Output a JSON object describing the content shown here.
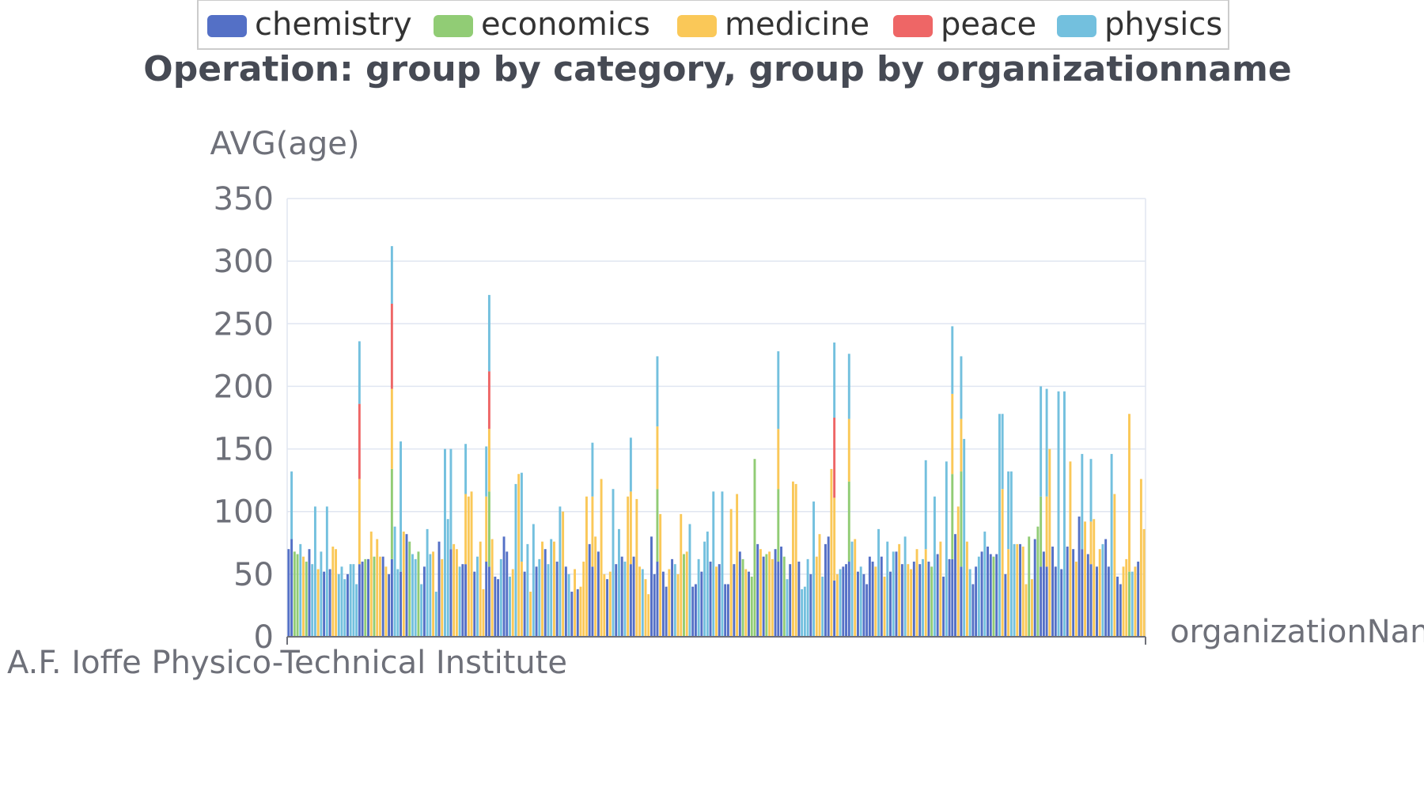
{
  "chart_data": {
    "type": "bar",
    "stacked": true,
    "title": "Operation: group by category, group by organizationname",
    "xlabel": "organizationName",
    "ylabel": "AVG(age)",
    "ylim": [
      0,
      350
    ],
    "yticks": [
      0,
      50,
      100,
      150,
      200,
      250,
      300,
      350
    ],
    "grid": true,
    "legend_position": "top",
    "first_category_label": "A.F. Ioffe Physico-Technical Institute",
    "category_count": 291,
    "series": [
      {
        "name": "chemistry",
        "color": "#5470c6"
      },
      {
        "name": "economics",
        "color": "#91cc75"
      },
      {
        "name": "medicine",
        "color": "#fac858"
      },
      {
        "name": "peace",
        "color": "#ee6666"
      },
      {
        "name": "physics",
        "color": "#73c0de"
      }
    ],
    "stacks": [
      {
        "i": 0,
        "segs": [
          [
            "chemistry",
            70
          ]
        ]
      },
      {
        "i": 1,
        "segs": [
          [
            "chemistry",
            78
          ],
          [
            "physics",
            54
          ]
        ]
      },
      {
        "i": 2,
        "segs": [
          [
            "economics",
            68
          ]
        ]
      },
      {
        "i": 6,
        "segs": [
          [
            "economics",
            60
          ]
        ]
      },
      {
        "i": 21,
        "segs": [
          [
            "physics",
            58
          ]
        ]
      },
      {
        "i": 24,
        "segs": [
          [
            "chemistry",
            58
          ],
          [
            "medicine",
            68
          ],
          [
            "peace",
            60
          ],
          [
            "physics",
            50
          ]
        ]
      },
      {
        "i": 35,
        "segs": [
          [
            "chemistry",
            62
          ],
          [
            "economics",
            72
          ],
          [
            "medicine",
            64
          ],
          [
            "peace",
            68
          ],
          [
            "physics",
            46
          ]
        ]
      },
      {
        "i": 38,
        "segs": [
          [
            "chemistry",
            52
          ],
          [
            "physics",
            104
          ]
        ]
      },
      {
        "i": 55,
        "segs": [
          [
            "chemistry",
            70
          ],
          [
            "physics",
            80
          ]
        ]
      },
      {
        "i": 60,
        "segs": [
          [
            "chemistry",
            58
          ],
          [
            "medicine",
            56
          ],
          [
            "physics",
            40
          ]
        ]
      },
      {
        "i": 67,
        "segs": [
          [
            "chemistry",
            60
          ],
          [
            "medicine",
            52
          ],
          [
            "physics",
            40
          ]
        ]
      },
      {
        "i": 68,
        "segs": [
          [
            "chemistry",
            56
          ],
          [
            "economics",
            60
          ],
          [
            "medicine",
            50
          ],
          [
            "peace",
            46
          ],
          [
            "physics",
            61
          ]
        ]
      },
      {
        "i": 79,
        "segs": [
          [
            "medicine",
            60
          ],
          [
            "physics",
            71
          ]
        ]
      },
      {
        "i": 103,
        "segs": [
          [
            "chemistry",
            56
          ],
          [
            "medicine",
            56
          ],
          [
            "physics",
            43
          ]
        ]
      },
      {
        "i": 116,
        "segs": [
          [
            "chemistry",
            58
          ],
          [
            "medicine",
            58
          ],
          [
            "physics",
            43
          ]
        ]
      },
      {
        "i": 125,
        "segs": [
          [
            "chemistry",
            60
          ],
          [
            "economics",
            58
          ],
          [
            "medicine",
            50
          ],
          [
            "physics",
            56
          ]
        ]
      },
      {
        "i": 133,
        "segs": [
          [
            "medicine",
            98
          ]
        ]
      },
      {
        "i": 158,
        "segs": [
          [
            "economics",
            142
          ]
        ]
      },
      {
        "i": 166,
        "segs": [
          [
            "chemistry",
            60
          ],
          [
            "economics",
            58
          ],
          [
            "medicine",
            48
          ],
          [
            "physics",
            62
          ]
        ]
      },
      {
        "i": 172,
        "segs": [
          [
            "medicine",
            122
          ]
        ]
      },
      {
        "i": 185,
        "segs": [
          [
            "chemistry",
            45
          ],
          [
            "medicine",
            66
          ],
          [
            "peace",
            64
          ],
          [
            "physics",
            60
          ]
        ]
      },
      {
        "i": 190,
        "segs": [
          [
            "chemistry",
            60
          ],
          [
            "economics",
            64
          ],
          [
            "medicine",
            50
          ],
          [
            "physics",
            52
          ]
        ]
      },
      {
        "i": 216,
        "segs": [
          [
            "medicine",
            70
          ],
          [
            "physics",
            71
          ]
        ]
      },
      {
        "i": 225,
        "segs": [
          [
            "chemistry",
            62
          ],
          [
            "economics",
            68
          ],
          [
            "medicine",
            64
          ],
          [
            "physics",
            54
          ]
        ]
      },
      {
        "i": 228,
        "segs": [
          [
            "chemistry",
            56
          ],
          [
            "economics",
            76
          ],
          [
            "medicine",
            42
          ],
          [
            "physics",
            50
          ]
        ]
      },
      {
        "i": 242,
        "segs": [
          [
            "medicine",
            118
          ],
          [
            "physics",
            60
          ]
        ]
      },
      {
        "i": 244,
        "segs": [
          [
            "medicine",
            70
          ],
          [
            "physics",
            62
          ]
        ]
      },
      {
        "i": 255,
        "segs": [
          [
            "chemistry",
            56
          ],
          [
            "economics",
            56
          ],
          [
            "physics",
            88
          ]
        ]
      },
      {
        "i": 257,
        "segs": [
          [
            "chemistry",
            56
          ],
          [
            "medicine",
            56
          ],
          [
            "physics",
            86
          ]
        ]
      },
      {
        "i": 269,
        "segs": [
          [
            "chemistry",
            70
          ],
          [
            "physics",
            76
          ]
        ]
      },
      {
        "i": 272,
        "segs": [
          [
            "chemistry",
            58
          ],
          [
            "medicine",
            34
          ],
          [
            "physics",
            50
          ]
        ]
      },
      {
        "i": 285,
        "segs": [
          [
            "economics",
            52
          ],
          [
            "medicine",
            126
          ]
        ]
      },
      {
        "i": 290,
        "segs": [
          [
            "medicine",
            86
          ]
        ]
      }
    ],
    "other_values": [
      [
        1,
        66
      ],
      [
        4,
        74
      ],
      [
        2,
        64
      ],
      [
        0,
        70
      ],
      [
        4,
        58
      ],
      [
        4,
        104
      ],
      [
        2,
        54
      ],
      [
        4,
        68
      ],
      [
        0,
        52
      ],
      [
        4,
        104
      ],
      [
        0,
        54
      ],
      [
        2,
        72
      ],
      [
        2,
        70
      ],
      [
        4,
        50
      ],
      [
        4,
        56
      ],
      [
        4,
        46
      ],
      [
        0,
        50
      ],
      [
        4,
        58
      ],
      [
        4,
        42
      ],
      [
        0,
        60
      ],
      [
        1,
        62
      ],
      [
        0,
        62
      ],
      [
        2,
        84
      ],
      [
        1,
        64
      ],
      [
        2,
        78
      ],
      [
        2,
        64
      ],
      [
        0,
        64
      ],
      [
        2,
        56
      ],
      [
        0,
        50
      ],
      [
        4,
        88
      ],
      [
        4,
        54
      ],
      [
        2,
        84
      ],
      [
        0,
        82
      ],
      [
        1,
        76
      ],
      [
        4,
        66
      ],
      [
        4,
        62
      ],
      [
        1,
        68
      ],
      [
        4,
        42
      ],
      [
        0,
        56
      ],
      [
        4,
        86
      ],
      [
        4,
        66
      ],
      [
        2,
        68
      ],
      [
        4,
        36
      ],
      [
        0,
        76
      ],
      [
        2,
        62
      ],
      [
        4,
        150
      ],
      [
        4,
        94
      ],
      [
        2,
        74
      ],
      [
        2,
        70
      ],
      [
        4,
        56
      ],
      [
        0,
        58
      ],
      [
        2,
        112
      ],
      [
        2,
        116
      ],
      [
        0,
        52
      ],
      [
        4,
        64
      ],
      [
        2,
        76
      ],
      [
        2,
        38
      ],
      [
        2,
        78
      ],
      [
        0,
        48
      ],
      [
        0,
        46
      ],
      [
        4,
        62
      ],
      [
        0,
        80
      ],
      [
        0,
        68
      ],
      [
        4,
        48
      ],
      [
        2,
        54
      ],
      [
        4,
        122
      ],
      [
        2,
        130
      ],
      [
        0,
        52
      ],
      [
        4,
        74
      ],
      [
        2,
        36
      ],
      [
        4,
        90
      ],
      [
        0,
        56
      ],
      [
        4,
        62
      ],
      [
        2,
        76
      ],
      [
        0,
        70
      ],
      [
        4,
        58
      ],
      [
        4,
        78
      ],
      [
        2,
        76
      ],
      [
        0,
        60
      ],
      [
        4,
        104
      ],
      [
        2,
        100
      ],
      [
        0,
        56
      ],
      [
        4,
        50
      ],
      [
        0,
        36
      ],
      [
        2,
        54
      ],
      [
        0,
        38
      ],
      [
        2,
        40
      ],
      [
        2,
        60
      ],
      [
        2,
        112
      ],
      [
        0,
        74
      ],
      [
        2,
        80
      ],
      [
        0,
        68
      ],
      [
        2,
        126
      ],
      [
        2,
        50
      ],
      [
        0,
        46
      ],
      [
        2,
        52
      ],
      [
        4,
        118
      ],
      [
        0,
        58
      ],
      [
        4,
        86
      ],
      [
        0,
        64
      ],
      [
        4,
        60
      ],
      [
        2,
        112
      ],
      [
        0,
        64
      ],
      [
        2,
        110
      ],
      [
        2,
        56
      ],
      [
        4,
        54
      ],
      [
        2,
        46
      ],
      [
        2,
        34
      ],
      [
        0,
        80
      ],
      [
        0,
        50
      ],
      [
        2,
        98
      ],
      [
        0,
        52
      ],
      [
        0,
        40
      ],
      [
        2,
        54
      ],
      [
        0,
        62
      ],
      [
        4,
        58
      ],
      [
        2,
        50
      ],
      [
        1,
        66
      ],
      [
        2,
        68
      ],
      [
        4,
        90
      ],
      [
        0,
        40
      ],
      [
        0,
        42
      ],
      [
        4,
        62
      ],
      [
        0,
        52
      ],
      [
        4,
        76
      ],
      [
        4,
        84
      ],
      [
        0,
        60
      ],
      [
        4,
        116
      ],
      [
        2,
        56
      ],
      [
        0,
        58
      ],
      [
        4,
        116
      ],
      [
        0,
        42
      ],
      [
        0,
        42
      ],
      [
        2,
        102
      ],
      [
        0,
        58
      ],
      [
        2,
        114
      ],
      [
        0,
        68
      ],
      [
        1,
        62
      ],
      [
        2,
        54
      ],
      [
        0,
        52
      ],
      [
        1,
        48
      ],
      [
        0,
        74
      ],
      [
        2,
        70
      ],
      [
        0,
        64
      ],
      [
        1,
        66
      ],
      [
        2,
        68
      ],
      [
        2,
        62
      ],
      [
        0,
        70
      ],
      [
        0,
        72
      ],
      [
        1,
        64
      ],
      [
        4,
        46
      ],
      [
        0,
        58
      ],
      [
        2,
        124
      ],
      [
        0,
        60
      ],
      [
        4,
        38
      ],
      [
        4,
        40
      ],
      [
        4,
        62
      ],
      [
        0,
        50
      ],
      [
        4,
        108
      ],
      [
        2,
        64
      ],
      [
        2,
        82
      ],
      [
        4,
        48
      ],
      [
        0,
        74
      ],
      [
        0,
        80
      ],
      [
        2,
        134
      ],
      [
        2,
        50
      ],
      [
        4,
        54
      ],
      [
        0,
        56
      ],
      [
        0,
        58
      ],
      [
        4,
        76
      ],
      [
        2,
        78
      ],
      [
        0,
        52
      ],
      [
        4,
        56
      ],
      [
        0,
        50
      ],
      [
        0,
        42
      ],
      [
        0,
        64
      ],
      [
        0,
        60
      ],
      [
        2,
        56
      ],
      [
        4,
        86
      ],
      [
        0,
        64
      ],
      [
        2,
        48
      ],
      [
        4,
        76
      ],
      [
        0,
        52
      ],
      [
        4,
        68
      ],
      [
        0,
        68
      ],
      [
        2,
        74
      ],
      [
        0,
        58
      ],
      [
        4,
        80
      ],
      [
        2,
        58
      ],
      [
        2,
        54
      ],
      [
        0,
        60
      ],
      [
        2,
        70
      ],
      [
        0,
        58
      ],
      [
        4,
        62
      ],
      [
        0,
        60
      ],
      [
        1,
        56
      ],
      [
        4,
        112
      ],
      [
        0,
        66
      ],
      [
        2,
        76
      ],
      [
        0,
        48
      ],
      [
        4,
        140
      ],
      [
        0,
        62
      ],
      [
        0,
        82
      ],
      [
        2,
        104
      ],
      [
        4,
        158
      ],
      [
        2,
        76
      ],
      [
        4,
        54
      ],
      [
        0,
        42
      ],
      [
        0,
        56
      ],
      [
        4,
        64
      ],
      [
        0,
        68
      ],
      [
        4,
        84
      ],
      [
        0,
        72
      ],
      [
        0,
        66
      ],
      [
        1,
        64
      ],
      [
        0,
        66
      ],
      [
        4,
        178
      ],
      [
        0,
        50
      ],
      [
        4,
        132
      ],
      [
        4,
        74
      ],
      [
        2,
        74
      ],
      [
        0,
        74
      ],
      [
        2,
        72
      ],
      [
        2,
        42
      ],
      [
        1,
        80
      ],
      [
        2,
        46
      ],
      [
        0,
        78
      ],
      [
        1,
        88
      ],
      [
        0,
        68
      ],
      [
        2,
        150
      ],
      [
        0,
        72
      ],
      [
        0,
        56
      ],
      [
        4,
        196
      ],
      [
        0,
        54
      ],
      [
        4,
        196
      ],
      [
        0,
        72
      ],
      [
        2,
        140
      ],
      [
        0,
        70
      ],
      [
        2,
        60
      ],
      [
        0,
        96
      ],
      [
        2,
        92
      ],
      [
        0,
        66
      ],
      [
        2,
        94
      ],
      [
        0,
        56
      ],
      [
        2,
        70
      ],
      [
        4,
        74
      ],
      [
        0,
        78
      ],
      [
        0,
        56
      ],
      [
        4,
        146
      ],
      [
        2,
        114
      ],
      [
        0,
        48
      ],
      [
        0,
        42
      ],
      [
        2,
        56
      ],
      [
        2,
        62
      ],
      [
        4,
        52
      ],
      [
        2,
        56
      ],
      [
        0,
        60
      ],
      [
        2,
        126
      ],
      [
        0,
        84
      ],
      [
        2,
        76
      ],
      [
        0,
        70
      ],
      [
        2,
        66
      ],
      [
        2,
        38
      ],
      [
        2,
        76
      ],
      [
        0,
        58
      ],
      [
        4,
        46
      ],
      [
        2,
        64
      ]
    ]
  },
  "legend": {
    "items": [
      {
        "name": "chemistry",
        "color": "#5470c6"
      },
      {
        "name": "economics",
        "color": "#91cc75"
      },
      {
        "name": "medicine",
        "color": "#fac858"
      },
      {
        "name": "peace",
        "color": "#ee6666"
      },
      {
        "name": "physics",
        "color": "#73c0de"
      }
    ]
  },
  "colors": {
    "axis": "#6e7079",
    "grid": "#e0e6f1",
    "title": "#464a54",
    "legend_border": "#cccccc"
  }
}
